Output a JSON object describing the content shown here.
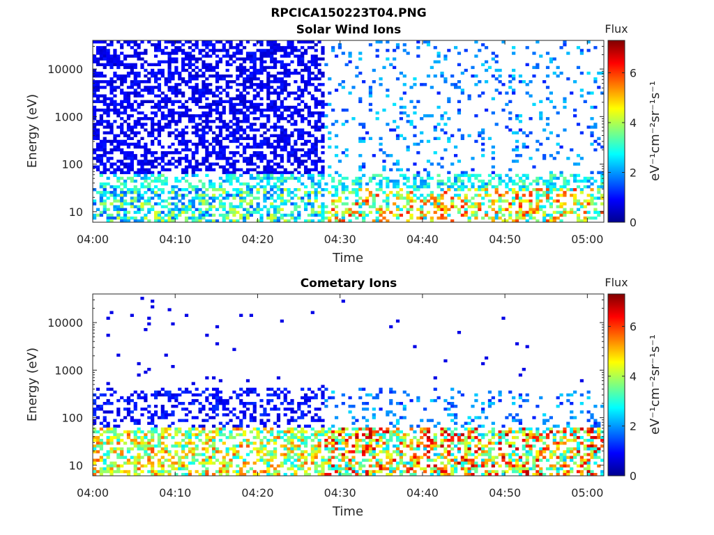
{
  "figure": {
    "title": "RPCICA150223T04.PNG"
  },
  "chart_data": [
    {
      "type": "heatmap",
      "title": "Solar Wind Ions",
      "xlabel": "Time",
      "ylabel": "Energy (eV)",
      "x_ticks": [
        "04:00",
        "04:10",
        "04:20",
        "04:30",
        "04:40",
        "04:50",
        "05:00"
      ],
      "y_ticks": [
        "10",
        "100",
        "1000",
        "10000"
      ],
      "y_scale": "log",
      "x_range": [
        "04:00",
        "05:02"
      ],
      "y_range": [
        6,
        40000
      ],
      "colorbar": {
        "title": "Flux",
        "label": "eV⁻¹cm⁻²sr⁻¹s⁻¹",
        "ticks": [
          "0",
          "2",
          "4",
          "6"
        ],
        "range": [
          0,
          7.3
        ],
        "colormap": "jet"
      },
      "description_level": "approximate"
    },
    {
      "type": "heatmap",
      "title": "Cometary Ions",
      "xlabel": "Time",
      "ylabel": "Energy (eV)",
      "x_ticks": [
        "04:00",
        "04:10",
        "04:20",
        "04:30",
        "04:40",
        "04:50",
        "05:00"
      ],
      "y_ticks": [
        "10",
        "100",
        "1000",
        "10000"
      ],
      "y_scale": "log",
      "x_range": [
        "04:00",
        "05:02"
      ],
      "y_range": [
        6,
        40000
      ],
      "colorbar": {
        "title": "Flux",
        "label": "eV⁻¹cm⁻²sr⁻¹s⁻¹",
        "ticks": [
          "0",
          "2",
          "4",
          "6"
        ],
        "range": [
          0,
          7.3
        ],
        "colormap": "jet"
      },
      "description_level": "approximate"
    }
  ]
}
